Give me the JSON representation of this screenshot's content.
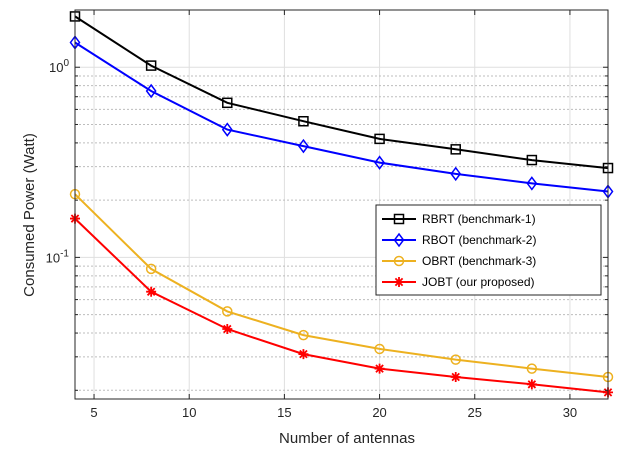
{
  "chart_data": {
    "type": "line",
    "xlabel": "Number of antennas",
    "ylabel": "Consumed Power (Watt)",
    "xlim": [
      4,
      32
    ],
    "ylim": [
      0.018,
      2.0
    ],
    "yscale": "log",
    "grid": "major-and-minor",
    "legend_position": "right-middle",
    "x_ticks": [
      5,
      10,
      15,
      20,
      25,
      30
    ],
    "y_tick_labels": [
      {
        "value": 1,
        "base": "10",
        "exp": "0"
      },
      {
        "value": 0.1,
        "base": "10",
        "exp": "-1"
      }
    ],
    "x": [
      4,
      8,
      12,
      16,
      20,
      24,
      28,
      32
    ],
    "series": [
      {
        "name": "RBRT (benchmark-1)",
        "color": "#000000",
        "marker": "square",
        "values": [
          1.85,
          1.02,
          0.65,
          0.52,
          0.42,
          0.37,
          0.325,
          0.295
        ]
      },
      {
        "name": "RBOT (benchmark-2)",
        "color": "#0000ff",
        "marker": "diamond",
        "values": [
          1.35,
          0.75,
          0.47,
          0.385,
          0.315,
          0.275,
          0.245,
          0.222
        ]
      },
      {
        "name": "OBRT (benchmark-3)",
        "color": "#edb120",
        "marker": "circle",
        "values": [
          0.215,
          0.087,
          0.052,
          0.039,
          0.033,
          0.029,
          0.026,
          0.0235
        ]
      },
      {
        "name": "JOBT (our proposed)",
        "color": "#ff0000",
        "marker": "asterisk",
        "values": [
          0.16,
          0.066,
          0.042,
          0.031,
          0.026,
          0.0235,
          0.0215,
          0.0195
        ]
      }
    ]
  }
}
